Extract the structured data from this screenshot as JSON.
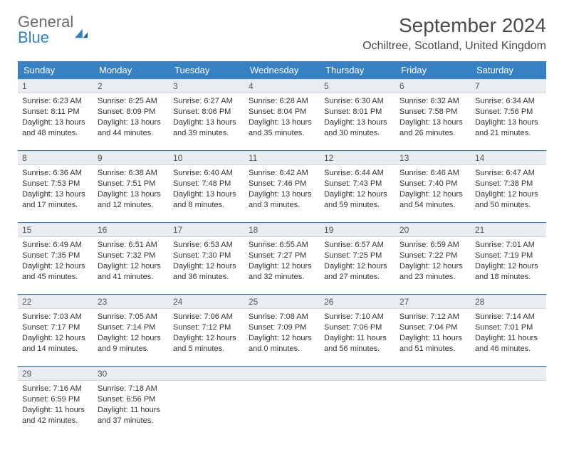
{
  "brand": {
    "part1": "General",
    "part2": "Blue"
  },
  "title": "September 2024",
  "location": "Ochiltree, Scotland, United Kingdom",
  "colors": {
    "header_bg": "#3780c3",
    "header_text": "#ffffff",
    "daynum_bg": "#e9edf1",
    "divider": "#3b6fa3",
    "text": "#333333",
    "logo_gray": "#6b6b6b",
    "logo_blue": "#3780c3"
  },
  "day_names": [
    "Sunday",
    "Monday",
    "Tuesday",
    "Wednesday",
    "Thursday",
    "Friday",
    "Saturday"
  ],
  "weeks": [
    [
      {
        "n": "1",
        "sr": "Sunrise: 6:23 AM",
        "ss": "Sunset: 8:11 PM",
        "d1": "Daylight: 13 hours",
        "d2": "and 48 minutes."
      },
      {
        "n": "2",
        "sr": "Sunrise: 6:25 AM",
        "ss": "Sunset: 8:09 PM",
        "d1": "Daylight: 13 hours",
        "d2": "and 44 minutes."
      },
      {
        "n": "3",
        "sr": "Sunrise: 6:27 AM",
        "ss": "Sunset: 8:06 PM",
        "d1": "Daylight: 13 hours",
        "d2": "and 39 minutes."
      },
      {
        "n": "4",
        "sr": "Sunrise: 6:28 AM",
        "ss": "Sunset: 8:04 PM",
        "d1": "Daylight: 13 hours",
        "d2": "and 35 minutes."
      },
      {
        "n": "5",
        "sr": "Sunrise: 6:30 AM",
        "ss": "Sunset: 8:01 PM",
        "d1": "Daylight: 13 hours",
        "d2": "and 30 minutes."
      },
      {
        "n": "6",
        "sr": "Sunrise: 6:32 AM",
        "ss": "Sunset: 7:58 PM",
        "d1": "Daylight: 13 hours",
        "d2": "and 26 minutes."
      },
      {
        "n": "7",
        "sr": "Sunrise: 6:34 AM",
        "ss": "Sunset: 7:56 PM",
        "d1": "Daylight: 13 hours",
        "d2": "and 21 minutes."
      }
    ],
    [
      {
        "n": "8",
        "sr": "Sunrise: 6:36 AM",
        "ss": "Sunset: 7:53 PM",
        "d1": "Daylight: 13 hours",
        "d2": "and 17 minutes."
      },
      {
        "n": "9",
        "sr": "Sunrise: 6:38 AM",
        "ss": "Sunset: 7:51 PM",
        "d1": "Daylight: 13 hours",
        "d2": "and 12 minutes."
      },
      {
        "n": "10",
        "sr": "Sunrise: 6:40 AM",
        "ss": "Sunset: 7:48 PM",
        "d1": "Daylight: 13 hours",
        "d2": "and 8 minutes."
      },
      {
        "n": "11",
        "sr": "Sunrise: 6:42 AM",
        "ss": "Sunset: 7:46 PM",
        "d1": "Daylight: 13 hours",
        "d2": "and 3 minutes."
      },
      {
        "n": "12",
        "sr": "Sunrise: 6:44 AM",
        "ss": "Sunset: 7:43 PM",
        "d1": "Daylight: 12 hours",
        "d2": "and 59 minutes."
      },
      {
        "n": "13",
        "sr": "Sunrise: 6:46 AM",
        "ss": "Sunset: 7:40 PM",
        "d1": "Daylight: 12 hours",
        "d2": "and 54 minutes."
      },
      {
        "n": "14",
        "sr": "Sunrise: 6:47 AM",
        "ss": "Sunset: 7:38 PM",
        "d1": "Daylight: 12 hours",
        "d2": "and 50 minutes."
      }
    ],
    [
      {
        "n": "15",
        "sr": "Sunrise: 6:49 AM",
        "ss": "Sunset: 7:35 PM",
        "d1": "Daylight: 12 hours",
        "d2": "and 45 minutes."
      },
      {
        "n": "16",
        "sr": "Sunrise: 6:51 AM",
        "ss": "Sunset: 7:32 PM",
        "d1": "Daylight: 12 hours",
        "d2": "and 41 minutes."
      },
      {
        "n": "17",
        "sr": "Sunrise: 6:53 AM",
        "ss": "Sunset: 7:30 PM",
        "d1": "Daylight: 12 hours",
        "d2": "and 36 minutes."
      },
      {
        "n": "18",
        "sr": "Sunrise: 6:55 AM",
        "ss": "Sunset: 7:27 PM",
        "d1": "Daylight: 12 hours",
        "d2": "and 32 minutes."
      },
      {
        "n": "19",
        "sr": "Sunrise: 6:57 AM",
        "ss": "Sunset: 7:25 PM",
        "d1": "Daylight: 12 hours",
        "d2": "and 27 minutes."
      },
      {
        "n": "20",
        "sr": "Sunrise: 6:59 AM",
        "ss": "Sunset: 7:22 PM",
        "d1": "Daylight: 12 hours",
        "d2": "and 23 minutes."
      },
      {
        "n": "21",
        "sr": "Sunrise: 7:01 AM",
        "ss": "Sunset: 7:19 PM",
        "d1": "Daylight: 12 hours",
        "d2": "and 18 minutes."
      }
    ],
    [
      {
        "n": "22",
        "sr": "Sunrise: 7:03 AM",
        "ss": "Sunset: 7:17 PM",
        "d1": "Daylight: 12 hours",
        "d2": "and 14 minutes."
      },
      {
        "n": "23",
        "sr": "Sunrise: 7:05 AM",
        "ss": "Sunset: 7:14 PM",
        "d1": "Daylight: 12 hours",
        "d2": "and 9 minutes."
      },
      {
        "n": "24",
        "sr": "Sunrise: 7:06 AM",
        "ss": "Sunset: 7:12 PM",
        "d1": "Daylight: 12 hours",
        "d2": "and 5 minutes."
      },
      {
        "n": "25",
        "sr": "Sunrise: 7:08 AM",
        "ss": "Sunset: 7:09 PM",
        "d1": "Daylight: 12 hours",
        "d2": "and 0 minutes."
      },
      {
        "n": "26",
        "sr": "Sunrise: 7:10 AM",
        "ss": "Sunset: 7:06 PM",
        "d1": "Daylight: 11 hours",
        "d2": "and 56 minutes."
      },
      {
        "n": "27",
        "sr": "Sunrise: 7:12 AM",
        "ss": "Sunset: 7:04 PM",
        "d1": "Daylight: 11 hours",
        "d2": "and 51 minutes."
      },
      {
        "n": "28",
        "sr": "Sunrise: 7:14 AM",
        "ss": "Sunset: 7:01 PM",
        "d1": "Daylight: 11 hours",
        "d2": "and 46 minutes."
      }
    ],
    [
      {
        "n": "29",
        "sr": "Sunrise: 7:16 AM",
        "ss": "Sunset: 6:59 PM",
        "d1": "Daylight: 11 hours",
        "d2": "and 42 minutes."
      },
      {
        "n": "30",
        "sr": "Sunrise: 7:18 AM",
        "ss": "Sunset: 6:56 PM",
        "d1": "Daylight: 11 hours",
        "d2": "and 37 minutes."
      },
      null,
      null,
      null,
      null,
      null
    ]
  ]
}
